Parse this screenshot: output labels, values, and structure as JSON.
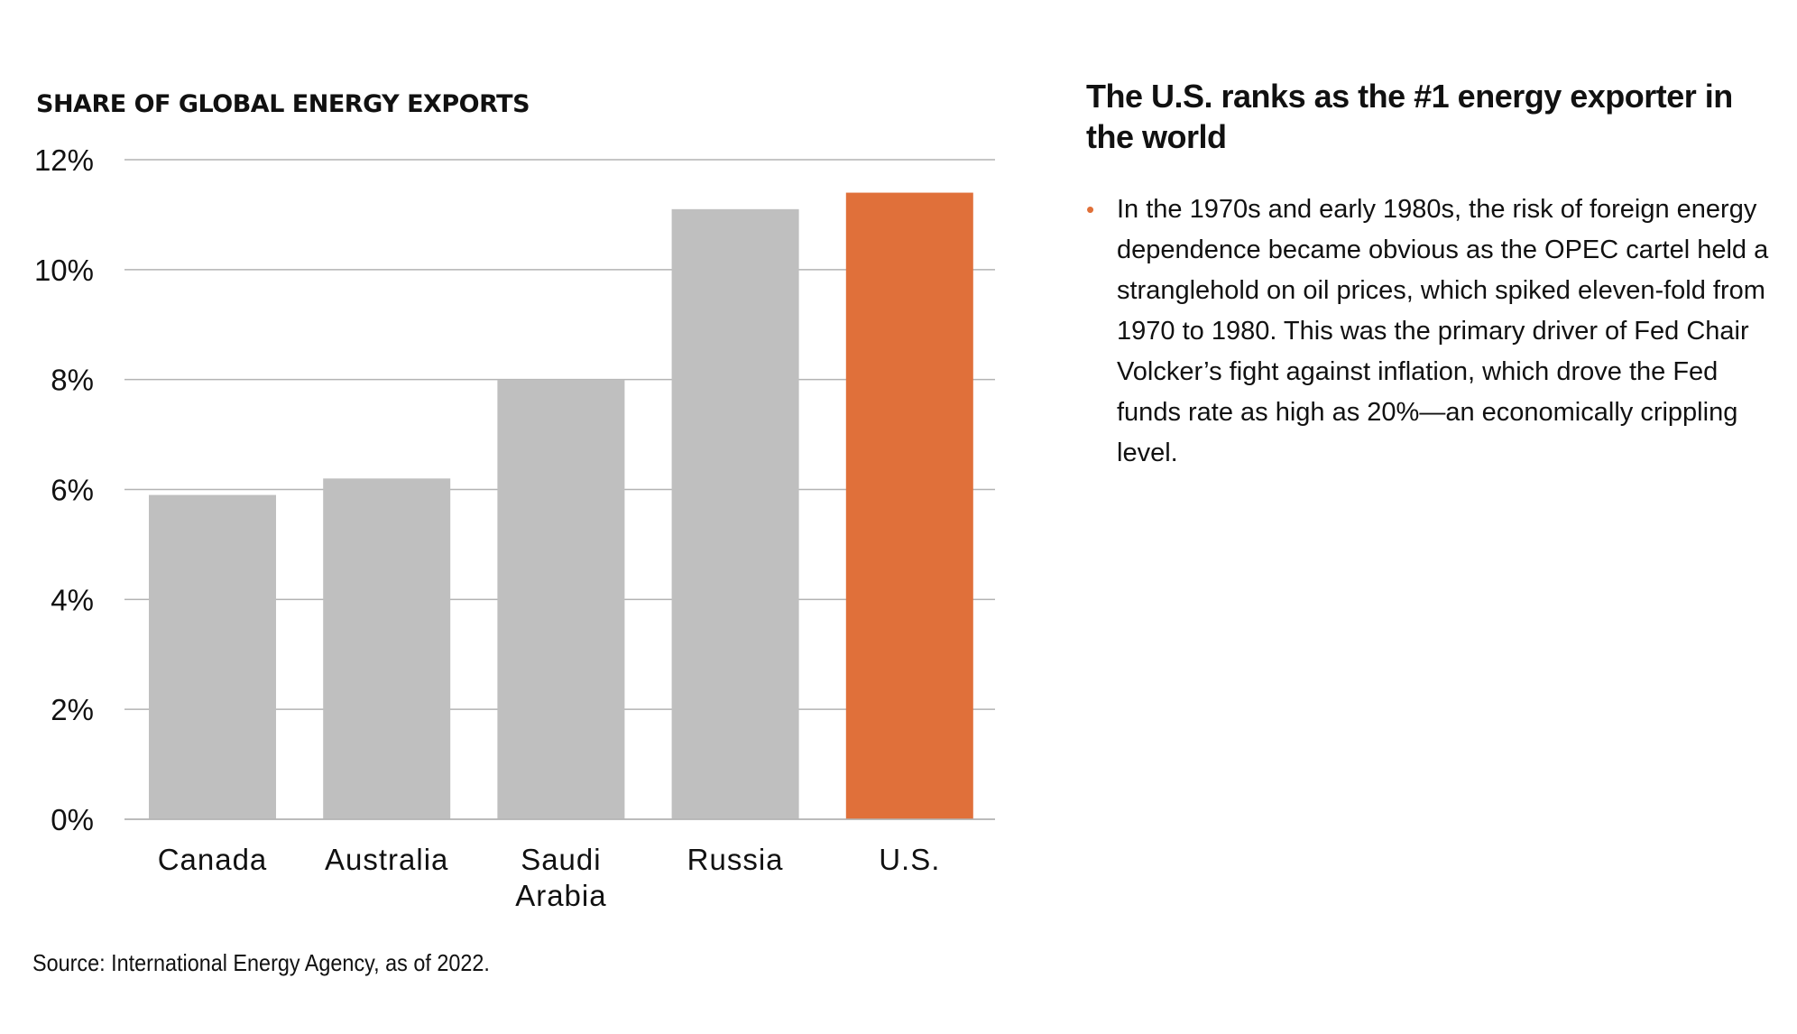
{
  "chart_data": {
    "type": "bar",
    "title": "SHARE OF GLOBAL ENERGY EXPORTS",
    "categories": [
      [
        "Canada"
      ],
      [
        "Australia"
      ],
      [
        "Saudi",
        "Arabia"
      ],
      [
        "Russia"
      ],
      [
        "U.S."
      ]
    ],
    "values": [
      5.9,
      6.2,
      8.0,
      11.1,
      11.4
    ],
    "highlight_index": 4,
    "colors": {
      "bar": "#bfbfbf",
      "highlight": "#e0703a",
      "grid": "#b3b3b3",
      "bullet": "#e07038"
    },
    "ylim": [
      0,
      12
    ],
    "yticks": [
      0,
      2,
      4,
      6,
      8,
      10,
      12
    ],
    "ytick_labels": [
      "0%",
      "2%",
      "4%",
      "6%",
      "8%",
      "10%",
      "12%"
    ],
    "xlabel": "",
    "ylabel": "",
    "grid": true,
    "source": "Source: International Energy Agency, as of 2022."
  },
  "panel": {
    "heading": "The U.S. ranks as the #1 energy exporter in the world",
    "bullets": [
      "In the 1970s and early 1980s, the risk of foreign energy dependence became obvious as the OPEC cartel held a stranglehold on oil prices, which spiked eleven-fold from 1970 to 1980. This was the primary driver of Fed Chair Volcker’s fight against inflation, which drove the Fed funds rate as high as 20%—an economically crippling level."
    ]
  }
}
